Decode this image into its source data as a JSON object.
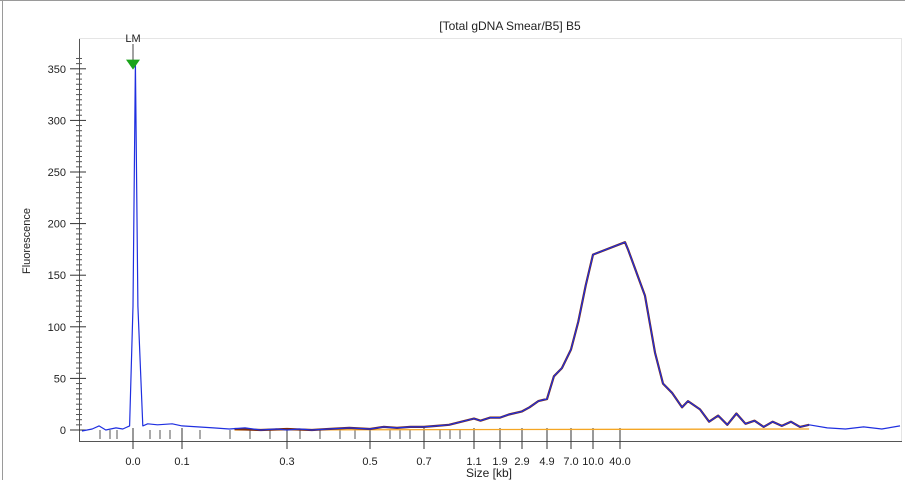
{
  "window": {
    "frame_color": "#9a9a9a"
  },
  "chart_data": {
    "type": "line",
    "title": "[Total gDNA Smear/B5] B5",
    "xlabel": "Size [kb]",
    "ylabel": "Fluorescence",
    "ylim": [
      -6,
      380
    ],
    "yticks": [
      0,
      50,
      100,
      150,
      200,
      250,
      300,
      350
    ],
    "x_tick_labels": [
      "0.0",
      "0.1",
      "0.3",
      "0.5",
      "0.7",
      "1.1",
      "1.9",
      "2.9",
      "4.9",
      "7.0",
      "10.0",
      "40.0"
    ],
    "x_tick_label_under_marker": "0.0",
    "xaxis_note": "non-linear size axis; ticks at positions mapped below",
    "x_tick_positions": [
      0.0,
      0.1,
      0.3,
      0.5,
      0.7,
      1.1,
      1.9,
      2.9,
      4.9,
      7.0,
      10.0,
      40.0
    ],
    "grid": false,
    "marker": {
      "label": "LM",
      "height": 356,
      "color": "#1aa31a"
    },
    "series": [
      {
        "role": "electropherogram",
        "color": "#1f2fe0",
        "points": [
          [
            -0.15,
            -1
          ],
          [
            -0.12,
            1
          ],
          [
            -0.1,
            4
          ],
          [
            -0.08,
            0
          ],
          [
            -0.05,
            2
          ],
          [
            -0.03,
            1
          ],
          [
            -0.01,
            4
          ],
          [
            0.0,
            120
          ],
          [
            0.005,
            356
          ],
          [
            0.01,
            120
          ],
          [
            0.02,
            4
          ],
          [
            0.03,
            6
          ],
          [
            0.05,
            5
          ],
          [
            0.08,
            6
          ],
          [
            0.1,
            4
          ],
          [
            0.13,
            3
          ],
          [
            0.16,
            2
          ],
          [
            0.19,
            1
          ],
          [
            0.22,
            2
          ],
          [
            0.25,
            0
          ],
          [
            0.28,
            1
          ],
          [
            0.3,
            0
          ],
          [
            0.33,
            1
          ],
          [
            0.36,
            0
          ],
          [
            0.4,
            1
          ],
          [
            0.45,
            2
          ],
          [
            0.5,
            1
          ],
          [
            0.55,
            3
          ],
          [
            0.6,
            2
          ],
          [
            0.65,
            3
          ],
          [
            0.7,
            3
          ],
          [
            0.8,
            4
          ],
          [
            0.9,
            5
          ],
          [
            1.0,
            8
          ],
          [
            1.1,
            11
          ],
          [
            1.3,
            9
          ],
          [
            1.6,
            12
          ],
          [
            1.9,
            12
          ],
          [
            2.3,
            15
          ],
          [
            2.9,
            18
          ],
          [
            3.5,
            22
          ],
          [
            4.2,
            28
          ],
          [
            4.9,
            30
          ],
          [
            5.5,
            52
          ],
          [
            6.2,
            60
          ],
          [
            7.0,
            78
          ],
          [
            8.0,
            105
          ],
          [
            9.0,
            140
          ],
          [
            10.0,
            170
          ],
          [
            12.0,
            182
          ],
          [
            15.0,
            175
          ],
          [
            18.0,
            130
          ],
          [
            21.0,
            75
          ],
          [
            25.0,
            45
          ],
          [
            28.0,
            36
          ],
          [
            32.0,
            22
          ],
          [
            36.0,
            28
          ],
          [
            40.0,
            20
          ],
          [
            45.0,
            8
          ],
          [
            50.0,
            14
          ],
          [
            55.0,
            5
          ],
          [
            60.0,
            16
          ],
          [
            65.0,
            6
          ],
          [
            70.0,
            9
          ],
          [
            75.0,
            3
          ],
          [
            80.0,
            8
          ],
          [
            85.0,
            4
          ],
          [
            90.0,
            8
          ],
          [
            95.0,
            3
          ],
          [
            100.0,
            5
          ],
          [
            110.0,
            2
          ],
          [
            120.0,
            1
          ],
          [
            130.0,
            3
          ],
          [
            140.0,
            1
          ],
          [
            150.0,
            4
          ]
        ]
      },
      {
        "role": "smear-region",
        "color": "#7a2b12",
        "points": [
          [
            0.2,
            1
          ],
          [
            0.25,
            0
          ],
          [
            0.3,
            1
          ],
          [
            0.36,
            0
          ],
          [
            0.4,
            1
          ],
          [
            0.45,
            2
          ],
          [
            0.5,
            1
          ],
          [
            0.55,
            3
          ],
          [
            0.6,
            2
          ],
          [
            0.65,
            3
          ],
          [
            0.7,
            3
          ],
          [
            0.8,
            4
          ],
          [
            0.9,
            5
          ],
          [
            1.0,
            8
          ],
          [
            1.1,
            11
          ],
          [
            1.3,
            9
          ],
          [
            1.6,
            12
          ],
          [
            1.9,
            12
          ],
          [
            2.3,
            15
          ],
          [
            2.9,
            18
          ],
          [
            3.5,
            22
          ],
          [
            4.2,
            28
          ],
          [
            4.9,
            30
          ],
          [
            5.5,
            52
          ],
          [
            6.2,
            60
          ],
          [
            7.0,
            78
          ],
          [
            8.0,
            105
          ],
          [
            9.0,
            140
          ],
          [
            10.0,
            170
          ],
          [
            12.0,
            182
          ],
          [
            15.0,
            175
          ],
          [
            18.0,
            130
          ],
          [
            21.0,
            75
          ],
          [
            25.0,
            45
          ],
          [
            28.0,
            36
          ],
          [
            32.0,
            22
          ],
          [
            36.0,
            28
          ],
          [
            40.0,
            20
          ],
          [
            45.0,
            8
          ],
          [
            50.0,
            14
          ],
          [
            55.0,
            5
          ],
          [
            60.0,
            16
          ],
          [
            65.0,
            6
          ],
          [
            70.0,
            9
          ],
          [
            75.0,
            3
          ],
          [
            80.0,
            8
          ],
          [
            85.0,
            4
          ],
          [
            90.0,
            8
          ],
          [
            95.0,
            3
          ],
          [
            100.0,
            5
          ]
        ]
      },
      {
        "role": "baseline",
        "color": "#f5a623",
        "points": [
          [
            0.2,
            0
          ],
          [
            100.0,
            1
          ]
        ]
      }
    ]
  }
}
